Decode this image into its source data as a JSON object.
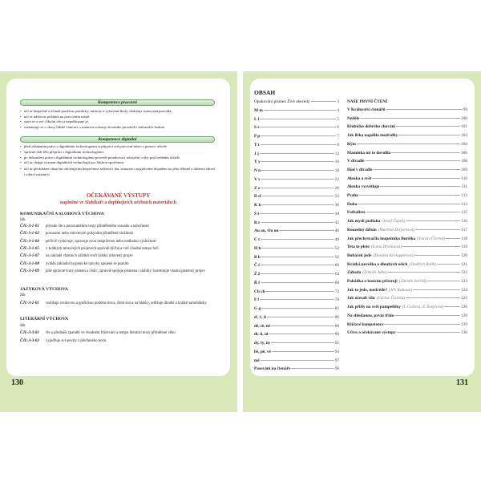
{
  "left_page": {
    "page_number": "130",
    "competences": [
      {
        "title": "Kompetence pracovní",
        "items": [
          "učí se bezpečně a účinně používat pomůcky, nástroje a vybavení školy, dodržuje stanovená pravidla,",
          "učí se udržovat pořádek na pracovním místě.",
          "stará se o své i školní věci a nepoškozuje je.",
          "seznamuje se s obory lidské činnosti, s nutností ochrany životního prostředí i kulturních hodnot"
        ]
      },
      {
        "title": "Kompetence digitální",
        "items": [
          "před zahájením práce s digitálními technologiemi si připraví své pracovní místo s pomocí učitele",
          "správně drží tělo při práci s digitálními technologiemi",
          "po dokončení práce s digitálními technologiemi provede protahovací relaxační cviky pod vedením učitele",
          "učí se chápat význam digitálních technologií pro lidskou společnost",
          "učí se předcházet situacím ohrožujícím bezpečnost zařízení i dat, situacím s negativním dopadem na jeho tělesné a duševní zdraví i zdraví ostatních"
        ]
      }
    ],
    "outputs_title": "OČEKÁVANÉ VÝSTUPY",
    "outputs_subtitle": "naplněné ve Slabikáři a doplňujících učebních materiálech",
    "sections": [
      {
        "heading": "KOMUNIKAČNÍ A SLOHOVÁ VÝCHOVA",
        "pupil": "žák",
        "rows": [
          {
            "code": "ČJL-3-1-01",
            "text": "plynule čte s porozuměním texty přiměřeného rozsahu a náročnosti"
          },
          {
            "code": "ČJL-3-1-02",
            "text": "porozumí nebo mluveným pokynům přiměřené složitosti"
          },
          {
            "code": "ČJL-3-1-04",
            "text": "pečlivě vyslovuje, opravuje svou nesprávnou nebo nedbalou výslovnost"
          },
          {
            "code": "ČJL-3-1-05",
            "text": "v krátkých mluvených projevech správně dýchá a volí vhodné tempo řeči"
          },
          {
            "code": "ČJL-3-1-07",
            "text": "na základě vlastních zážitků tvoří krátký mluvený projev"
          },
          {
            "code": "ČJL-3-1-08",
            "text": "zvládá základní hygienické návyky spojené se psaním"
          },
          {
            "code": "ČJL-3-1-09",
            "text": "píše správné tvary písmen a číslic, správně spojuje písmena i slabiky; kontroluje vlastní písemný projev"
          }
        ]
      },
      {
        "heading": "JAZYKOVÁ VÝCHOVA",
        "pupil": "žák",
        "rows": [
          {
            "code": "ČJL-3-2-01",
            "text": "rozlišuje zvukovou a grafickou podobu slova, člení slova na hlásky, odlišuje dlouhé a krátké samohlásky"
          }
        ]
      },
      {
        "heading": "LITERÁRNÍ VÝCHOVA",
        "pupil": "žák",
        "rows": [
          {
            "code": "ČJL-3-3-01",
            "text": "čte a přednáší zpaměti ve vhodném frázování a tempu literární texty přiměřené věku"
          },
          {
            "code": "ČJL-3-3-02",
            "text": "vyjadřuje své pocity z přečteného textu"
          }
        ]
      }
    ]
  },
  "right_page": {
    "page_number": "131",
    "title": "OBSAH",
    "left_column": [
      {
        "title": "Opakování písmen Živé abecedy",
        "page": "3",
        "bold": false
      },
      {
        "title": "M m",
        "page": "4"
      },
      {
        "title": "L l",
        "page": "5"
      },
      {
        "title": "S s",
        "page": "6"
      },
      {
        "title": "P p",
        "page": "7"
      },
      {
        "title": "T t",
        "page": "8"
      },
      {
        "title": "J j",
        "page": "12"
      },
      {
        "title": "Y y",
        "page": "16"
      },
      {
        "title": "N n",
        "page": "18"
      },
      {
        "title": "V v",
        "page": "22"
      },
      {
        "title": "Z z",
        "page": "26"
      },
      {
        "title": "D d",
        "page": "32"
      },
      {
        "title": "K k",
        "page": "36"
      },
      {
        "title": "Š š",
        "page": "38"
      },
      {
        "title": "R r",
        "page": "42"
      },
      {
        "title": "Au au, Ou ou",
        "page": "46"
      },
      {
        "title": "C c",
        "page": "48"
      },
      {
        "title": "H h",
        "page": "52"
      },
      {
        "title": "B b",
        "page": "56"
      },
      {
        "title": "Č č",
        "page": "60"
      },
      {
        "title": "Ž ž",
        "page": "64"
      },
      {
        "title": "Ř ř",
        "page": "68"
      },
      {
        "title": "Ch ch",
        "page": "72"
      },
      {
        "title": "F f",
        "page": "78"
      },
      {
        "title": "G g",
        "page": "82"
      },
      {
        "title": "ď, ť, ň",
        "page": "86"
      },
      {
        "title": "dě, tě, ně",
        "page": "88"
      },
      {
        "title": "di, ti, ni",
        "page": "90"
      },
      {
        "title": "dy, ty, ny",
        "page": "91"
      },
      {
        "title": "bě, pě, vě",
        "page": "94"
      },
      {
        "title": "mě",
        "page": "97"
      },
      {
        "title": "Pasování na čtenáře",
        "page": "98"
      }
    ],
    "right_heading": "NAŠE PRVNÍ ČTENÍ",
    "right_column": [
      {
        "title": "V Království čtenářů",
        "page": "99"
      },
      {
        "title": "Neděle",
        "page": "100"
      },
      {
        "title": "Klubíčko dobrého chování",
        "page": "101"
      },
      {
        "title": "Jak liška napálila medvídky",
        "page": "103"
      },
      {
        "title": "Rým",
        "page": "104"
      },
      {
        "title": "Maminka mi to dovolila",
        "page": "106"
      },
      {
        "title": "V divadle",
        "page": "108"
      },
      {
        "title": "Hod v divadle",
        "page": "109"
      },
      {
        "title": "Alenka a svět",
        "page": "110"
      },
      {
        "title": "Alenka vysvětluje",
        "page": "111"
      },
      {
        "title": "Praha",
        "page": "112"
      },
      {
        "title": "Duha",
        "page": "113"
      },
      {
        "title": "Fotbalista",
        "page": "115"
      },
      {
        "title": "Jak myslí podlaha",
        "author": "(Josef Čapek)",
        "page": "116"
      },
      {
        "title": "Kouzelný džbán",
        "author": "(Martina Drijverová)",
        "page": "117"
      },
      {
        "title": "Jak přechytračila loupežníka Buriška",
        "author": "(Václav Čtvrtek)",
        "page": "118"
      },
      {
        "title": "Teta to plete",
        "author": "(Ivona Březinová)",
        "page": "119"
      },
      {
        "title": "Bubáček jede",
        "author": "(Daniela Krolupperová)",
        "page": "120"
      },
      {
        "title": "Krátká povídka o dlouhých uších",
        "author": "(Jindřich Balík)",
        "page": "121"
      },
      {
        "title": "Záhada",
        "author": "(Zdeněk Adla)",
        "page": "122"
      },
      {
        "title": "Pohádka o hasicím přístroji",
        "author": "(Zdeněk Svěrák)",
        "page": "123"
      },
      {
        "title": "Jak to jede, medvěde?",
        "author": "(Jiří Kahoun)",
        "page": "124"
      },
      {
        "title": "Jak učesali vílu",
        "author": "(Václav Čtvrtek)",
        "page": "125"
      },
      {
        "title": "Jak přišly na svět pampelišky",
        "author": "(I. Gošová, Z. Krejčová)",
        "page": "126"
      },
      {
        "title": "Na shledanou, první třído",
        "page": "128"
      },
      {
        "title": "Klíčové kompetence",
        "page": "129"
      },
      {
        "title": "Učivo a očekávané výstupy",
        "page": "130"
      }
    ]
  },
  "colors": {
    "page_background": "#d9e8b8",
    "heading_red": "#c8302a",
    "bar_green": "#b9dcb0"
  }
}
